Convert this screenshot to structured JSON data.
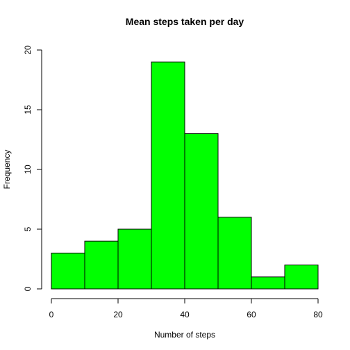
{
  "chart_data": {
    "type": "bar",
    "title": "Mean steps taken per day",
    "xlabel": "Number of steps",
    "ylabel": "Frequency",
    "bin_edges": [
      0,
      10,
      20,
      30,
      40,
      50,
      60,
      70,
      80
    ],
    "values": [
      3,
      4,
      5,
      19,
      13,
      6,
      1,
      2
    ],
    "xlim": [
      0,
      80
    ],
    "ylim": [
      0,
      20
    ],
    "x_ticks": [
      0,
      20,
      40,
      60,
      80
    ],
    "y_ticks": [
      0,
      5,
      10,
      15,
      20
    ],
    "bar_color": "#00ff00",
    "grid": false
  }
}
